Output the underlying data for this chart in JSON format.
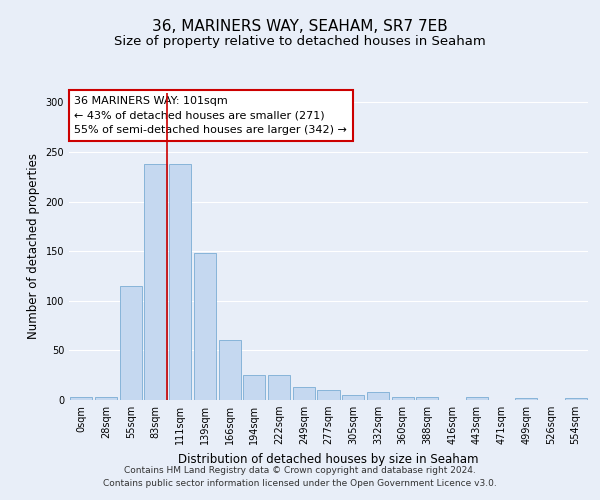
{
  "title": "36, MARINERS WAY, SEAHAM, SR7 7EB",
  "subtitle": "Size of property relative to detached houses in Seaham",
  "xlabel": "Distribution of detached houses by size in Seaham",
  "ylabel": "Number of detached properties",
  "bin_labels": [
    "0sqm",
    "28sqm",
    "55sqm",
    "83sqm",
    "111sqm",
    "139sqm",
    "166sqm",
    "194sqm",
    "222sqm",
    "249sqm",
    "277sqm",
    "305sqm",
    "332sqm",
    "360sqm",
    "388sqm",
    "416sqm",
    "443sqm",
    "471sqm",
    "499sqm",
    "526sqm",
    "554sqm"
  ],
  "bar_values": [
    3,
    3,
    115,
    238,
    238,
    148,
    60,
    25,
    25,
    13,
    10,
    5,
    8,
    3,
    3,
    0,
    3,
    0,
    2,
    0,
    2
  ],
  "bar_color": "#c5d8f0",
  "bar_edge_color": "#7aadd4",
  "property_line_color": "#cc0000",
  "property_line_bin": 3,
  "annotation_text": "36 MARINERS WAY: 101sqm\n← 43% of detached houses are smaller (271)\n55% of semi-detached houses are larger (342) →",
  "annotation_box_facecolor": "#ffffff",
  "annotation_box_edgecolor": "#cc0000",
  "ylim": [
    0,
    310
  ],
  "yticks": [
    0,
    50,
    100,
    150,
    200,
    250,
    300
  ],
  "footer_text": "Contains HM Land Registry data © Crown copyright and database right 2024.\nContains public sector information licensed under the Open Government Licence v3.0.",
  "bg_color": "#e8eef8",
  "plot_bg_color": "#e8eef8",
  "grid_color": "#ffffff",
  "title_fontsize": 11,
  "subtitle_fontsize": 9.5,
  "axis_label_fontsize": 8.5,
  "tick_fontsize": 7,
  "annotation_fontsize": 8,
  "footer_fontsize": 6.5
}
